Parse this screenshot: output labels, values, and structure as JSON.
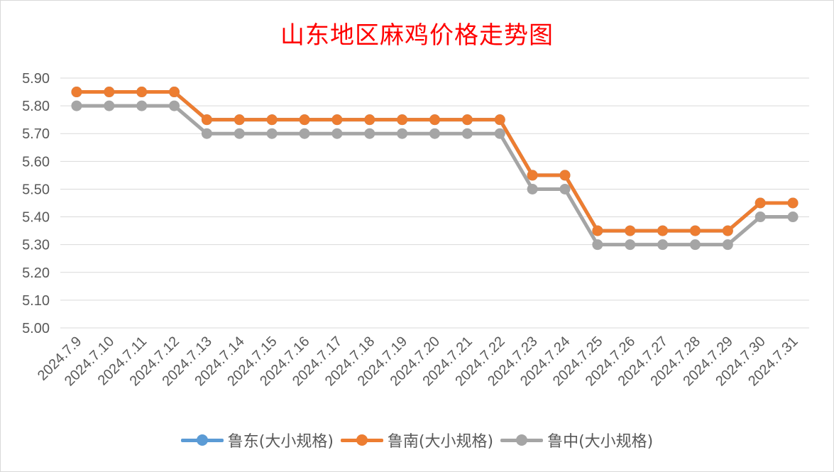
{
  "chart_data": {
    "type": "line",
    "title": "山东地区麻鸡价格走势图",
    "xlabel": "",
    "ylabel": "",
    "ylim": [
      5.0,
      5.9
    ],
    "yticks": [
      "5.90",
      "5.80",
      "5.70",
      "5.60",
      "5.50",
      "5.40",
      "5.30",
      "5.20",
      "5.10",
      "5.00"
    ],
    "categories": [
      "2024.7.9",
      "2024.7.10",
      "2024.7.11",
      "2024.7.12",
      "2024.7.13",
      "2024.7.14",
      "2024.7.15",
      "2024.7.16",
      "2024.7.17",
      "2024.7.18",
      "2024.7.19",
      "2024.7.20",
      "2024.7.21",
      "2024.7.22",
      "2024.7.23",
      "2024.7.24",
      "2024.7.25",
      "2024.7.26",
      "2024.7.27",
      "2024.7.28",
      "2024.7.29",
      "2024.7.30",
      "2024.7.31"
    ],
    "series": [
      {
        "name": "鲁东(大小规格)",
        "color": "#5b9bd5",
        "values": [
          5.85,
          5.85,
          5.85,
          5.85,
          5.75,
          5.75,
          5.75,
          5.75,
          5.75,
          5.75,
          5.75,
          5.75,
          5.75,
          5.75,
          5.55,
          5.55,
          5.35,
          5.35,
          5.35,
          5.35,
          5.35,
          5.45,
          5.45
        ]
      },
      {
        "name": "鲁南(大小规格)",
        "color": "#ed7d31",
        "values": [
          5.85,
          5.85,
          5.85,
          5.85,
          5.75,
          5.75,
          5.75,
          5.75,
          5.75,
          5.75,
          5.75,
          5.75,
          5.75,
          5.75,
          5.55,
          5.55,
          5.35,
          5.35,
          5.35,
          5.35,
          5.35,
          5.45,
          5.45
        ]
      },
      {
        "name": "鲁中(大小规格)",
        "color": "#a5a5a5",
        "values": [
          5.8,
          5.8,
          5.8,
          5.8,
          5.7,
          5.7,
          5.7,
          5.7,
          5.7,
          5.7,
          5.7,
          5.7,
          5.7,
          5.7,
          5.5,
          5.5,
          5.3,
          5.3,
          5.3,
          5.3,
          5.3,
          5.4,
          5.4
        ]
      }
    ],
    "grid": true,
    "legend_position": "bottom"
  }
}
